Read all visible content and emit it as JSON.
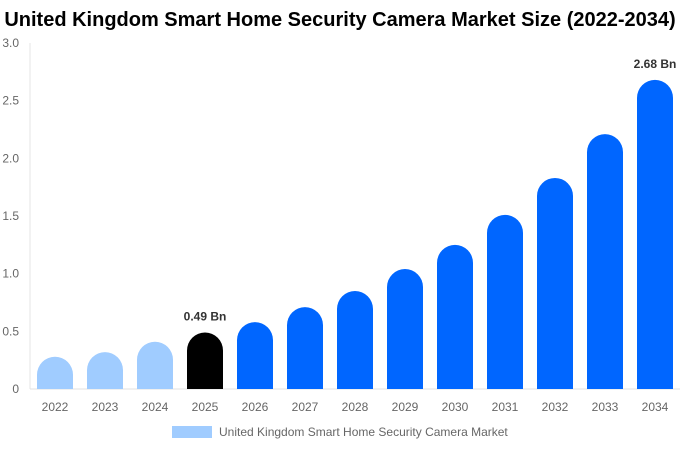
{
  "chart_data": {
    "type": "bar",
    "title": "United Kingdom Smart Home Security Camera Market Size (2022-2034)",
    "categories": [
      "2022",
      "2023",
      "2024",
      "2025",
      "2026",
      "2027",
      "2028",
      "2029",
      "2030",
      "2031",
      "2032",
      "2033",
      "2034"
    ],
    "series": [
      {
        "name": "United Kingdom Smart Home Security Camera Market",
        "values": [
          0.28,
          0.32,
          0.41,
          0.49,
          0.58,
          0.71,
          0.85,
          1.04,
          1.25,
          1.51,
          1.83,
          2.21,
          2.68
        ]
      }
    ],
    "data_labels": {
      "3": "0.49 Bn",
      "12": "2.68 Bn"
    },
    "ylim": [
      0,
      3.0
    ],
    "yticks": [
      "0",
      "0.5",
      "1.0",
      "1.5",
      "2.0",
      "2.5",
      "3.0"
    ],
    "grid": false,
    "legend": "bottom",
    "colors": {
      "historical": "#A0CCFF",
      "current": "#000000",
      "forecast": "#0066FF"
    }
  }
}
